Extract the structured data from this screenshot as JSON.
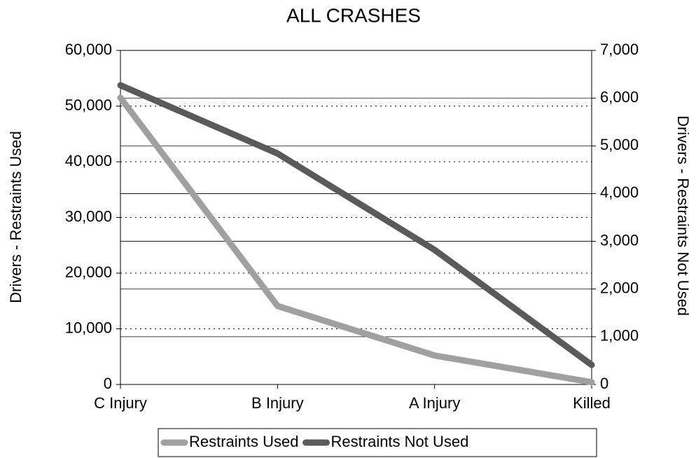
{
  "chart_data": {
    "type": "line",
    "title": "ALL CRASHES",
    "y_label": "Drivers - Restraints Used",
    "y2_label": "Drivers - Restraints Not Used",
    "categories": [
      "C Injury",
      "B Injury",
      "A Injury",
      "Killed"
    ],
    "series": [
      {
        "name": "Restraints Used",
        "color": "#a0a0a0",
        "values": [
          51500,
          14100,
          5200,
          400
        ]
      },
      {
        "name": "Restraints Not Used",
        "color": "#5a5a5a",
        "values": [
          6270,
          4840,
          2820,
          410
        ],
        "axis": "y2"
      }
    ],
    "ylim": [
      0,
      60000
    ],
    "yticks": [
      0,
      {
        "value": 10000,
        "label": "10,000"
      },
      {
        "value": 20000,
        "label": "20,000"
      },
      {
        "value": 30000,
        "label": "30,000"
      },
      {
        "value": 40000,
        "label": "40,000"
      },
      {
        "value": 50000,
        "label": "50,000"
      },
      {
        "value": 60000,
        "label": "60,000"
      }
    ],
    "y2lim": [
      0,
      7000
    ],
    "y2ticks": [
      0,
      {
        "value": 1000,
        "label": "1,000"
      },
      {
        "value": 2000,
        "label": "2,000"
      },
      {
        "value": 3000,
        "label": "3,000"
      },
      {
        "value": 4000,
        "label": "4,000"
      },
      {
        "value": 5000,
        "label": "5,000"
      },
      {
        "value": 6000,
        "label": "6,000"
      },
      {
        "value": 7000,
        "label": "7,000"
      }
    ],
    "grid": true,
    "y2grid": true,
    "legend": "bottom"
  }
}
